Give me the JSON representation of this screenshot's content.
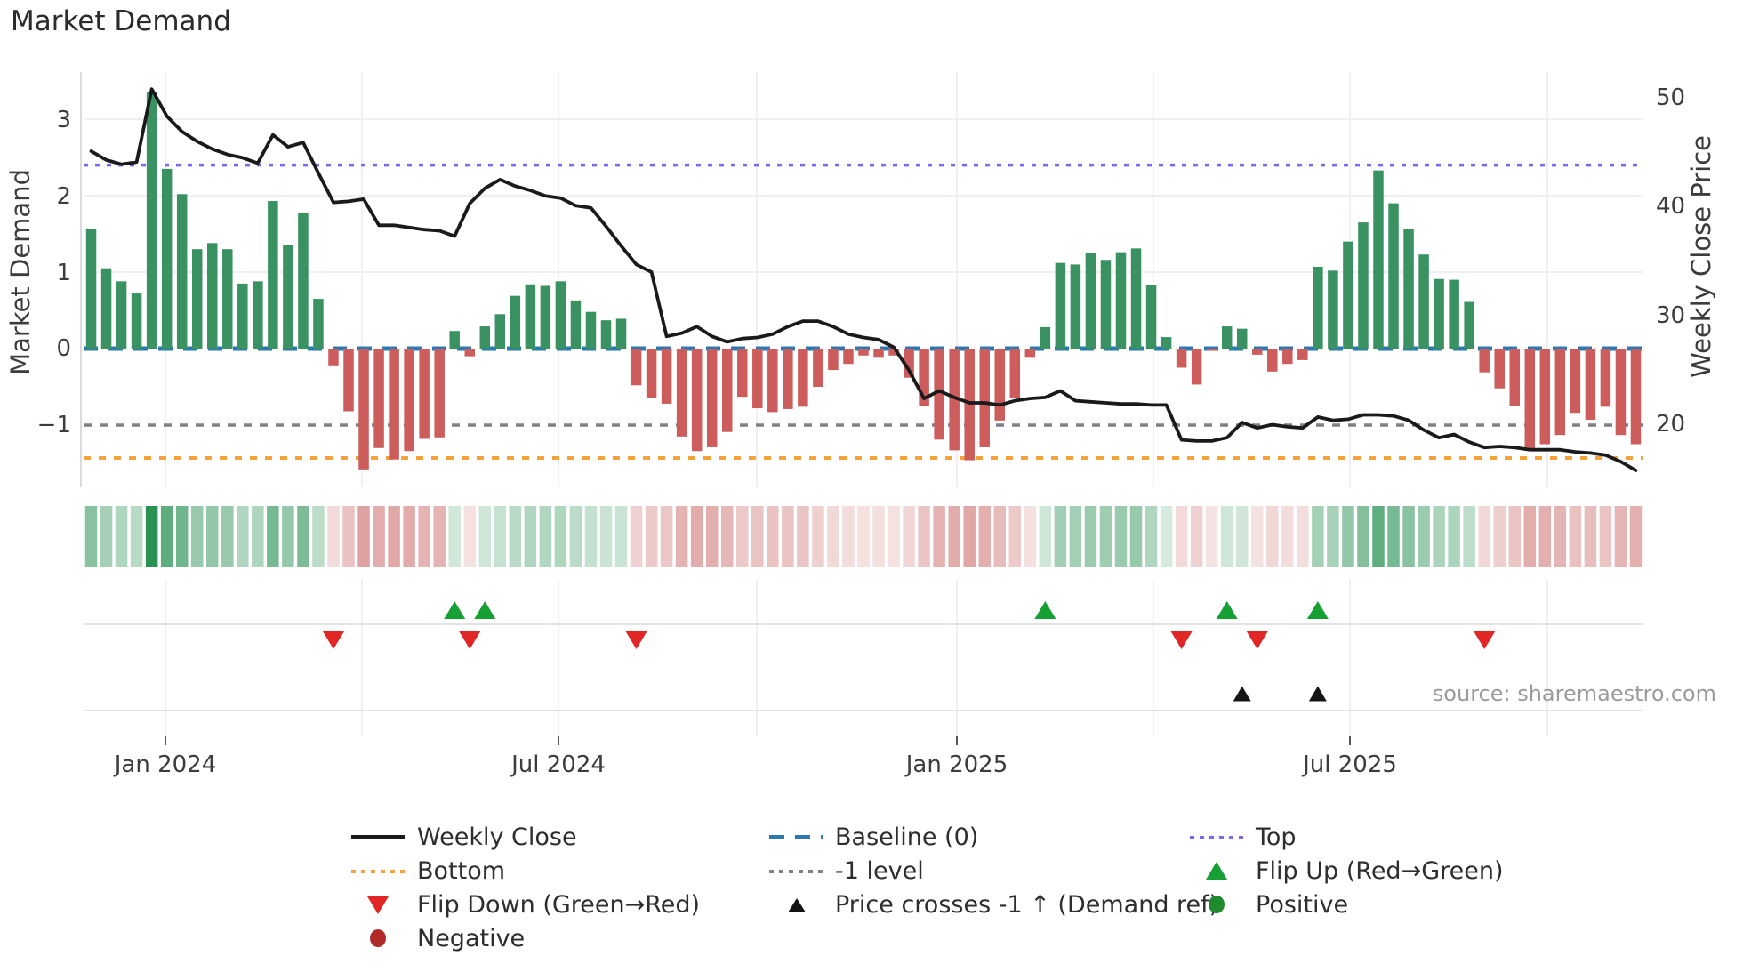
{
  "title": "Market Demand",
  "source_text": "source: sharemaestro.com",
  "axes": {
    "left": {
      "title": "Market Demand",
      "ticks": [
        "3",
        "2",
        "1",
        "0",
        "−1"
      ]
    },
    "right": {
      "title": "Weekly Close Price",
      "ticks": [
        "50",
        "40",
        "30",
        "20"
      ]
    },
    "x": {
      "ticks": [
        "Jan 2024",
        "Jul 2024",
        "Jan 2025",
        "Jul 2025"
      ]
    }
  },
  "legend": [
    {
      "label": "Weekly Close",
      "swatch": "line-black"
    },
    {
      "label": "Baseline (0)",
      "swatch": "dash-blue"
    },
    {
      "label": "Top",
      "swatch": "dot-purple"
    },
    {
      "label": "Bottom",
      "swatch": "dot-orange"
    },
    {
      "label": "-1 level",
      "swatch": "dot-gray"
    },
    {
      "label": "Flip Up (Red→Green)",
      "swatch": "tri-up-green"
    },
    {
      "label": "Flip Down (Green→Red)",
      "swatch": "tri-down-red"
    },
    {
      "label": "Price crosses -1 ↑ (Demand ref)",
      "swatch": "tri-up-black"
    },
    {
      "label": "Positive",
      "swatch": "circ-green"
    },
    {
      "label": "Negative",
      "swatch": "circ-darkred"
    }
  ],
  "colors": {
    "bar_positive": "#3a9162",
    "bar_negative": "#cd5c5c",
    "weekly_close_line": "#1a1a1a",
    "baseline": "#2b79b0",
    "top_line": "#7b68ee",
    "bottom_line": "#f5a23d",
    "minus1_line": "#7f7f88",
    "flip_up_marker": "#16a034",
    "flip_down_marker": "#e12726",
    "price_cross_marker": "#141414",
    "positive_legend_dot": "#1e8b2e",
    "negative_legend_dot": "#b02a2a",
    "heatmap_green_base": "#1f8b4c",
    "heatmap_red_base": "#c0504d",
    "gridline": "#ececf1",
    "lane_line": "#d9d9e0",
    "source_gray": "#9b9b9b"
  },
  "chart_data": {
    "type": "bar+line",
    "title": "Market Demand",
    "x_unit": "weekly bars (Nov 2023 – Oct 2025)",
    "x_tick_labels": [
      "Jan 2024",
      "Jul 2024",
      "Jan 2025",
      "Jul 2025"
    ],
    "left_axis": {
      "label": "Market Demand",
      "ticks": [
        3,
        2,
        1,
        0,
        -1
      ],
      "ylim": [
        -1.81,
        3.62
      ]
    },
    "right_axis": {
      "label": "Weekly Close Price",
      "ticks": [
        50,
        40,
        30,
        20
      ],
      "ylim": [
        14.3,
        51.9
      ]
    },
    "reference_levels": {
      "baseline": 0,
      "top": 2.4,
      "bottom": -1.43,
      "minus1": -1
    },
    "legend_position": "bottom",
    "grid": "quarterly vertical + integer horizontal, light gray",
    "demand_bars": [
      1.57,
      1.05,
      0.88,
      0.72,
      3.35,
      2.35,
      2.02,
      1.3,
      1.38,
      1.3,
      0.85,
      0.88,
      1.93,
      1.35,
      1.78,
      0.65,
      -0.23,
      -0.82,
      -1.58,
      -1.3,
      -1.45,
      -1.34,
      -1.18,
      -1.16,
      0.23,
      -0.1,
      0.29,
      0.45,
      0.69,
      0.84,
      0.82,
      0.88,
      0.63,
      0.48,
      0.37,
      0.39,
      -0.48,
      -0.64,
      -0.72,
      -1.15,
      -1.34,
      -1.29,
      -1.09,
      -0.63,
      -0.78,
      -0.83,
      -0.79,
      -0.76,
      -0.5,
      -0.28,
      -0.2,
      -0.09,
      -0.12,
      -0.09,
      -0.38,
      -0.75,
      -1.19,
      -1.33,
      -1.46,
      -1.29,
      -0.94,
      -0.64,
      -0.12,
      0.28,
      1.12,
      1.1,
      1.25,
      1.16,
      1.26,
      1.31,
      0.83,
      0.15,
      -0.25,
      -0.47,
      -0.03,
      0.29,
      0.26,
      -0.08,
      -0.3,
      -0.2,
      -0.15,
      1.07,
      1.02,
      1.4,
      1.65,
      2.33,
      1.9,
      1.56,
      1.23,
      0.91,
      0.9,
      0.61,
      -0.31,
      -0.52,
      -0.75,
      -1.31,
      -1.25,
      -1.13,
      -0.84,
      -0.93,
      -0.76,
      -1.13,
      -1.25
    ],
    "weekly_close": [
      45.1,
      44.3,
      43.9,
      44.1,
      50.8,
      48.3,
      46.9,
      46.0,
      45.3,
      44.8,
      44.5,
      44.0,
      46.6,
      45.5,
      45.9,
      43.1,
      40.4,
      40.5,
      40.7,
      38.3,
      38.3,
      38.1,
      37.9,
      37.8,
      37.3,
      40.3,
      41.7,
      42.5,
      41.9,
      41.5,
      41.0,
      40.8,
      40.1,
      39.9,
      38.2,
      36.4,
      34.7,
      34.0,
      28.1,
      28.4,
      29.0,
      28.1,
      27.6,
      27.9,
      28.0,
      28.3,
      29.0,
      29.5,
      29.5,
      29.0,
      28.3,
      28.0,
      27.8,
      27.1,
      25.0,
      22.4,
      23.1,
      22.5,
      22.0,
      22.0,
      21.8,
      22.2,
      22.4,
      22.5,
      23.1,
      22.2,
      22.1,
      22.0,
      21.9,
      21.9,
      21.8,
      21.8,
      18.6,
      18.5,
      18.5,
      18.8,
      20.2,
      19.7,
      20.0,
      19.8,
      19.7,
      20.7,
      20.4,
      20.5,
      20.9,
      20.9,
      20.8,
      20.4,
      19.5,
      18.8,
      19.1,
      18.4,
      17.9,
      18.0,
      17.9,
      17.7,
      17.7,
      17.7,
      17.5,
      17.4,
      17.2,
      16.6,
      15.8
    ],
    "heatmap_strip": "one cell per week; hue = sign of demand (green/red), intensity = |demand|",
    "markers": {
      "flip_up_weeks": [
        24,
        26,
        63,
        75,
        81
      ],
      "flip_down_weeks": [
        16,
        25,
        36,
        72,
        77,
        92
      ],
      "price_crosses_minus1_up_weeks": [
        76,
        81
      ]
    }
  }
}
